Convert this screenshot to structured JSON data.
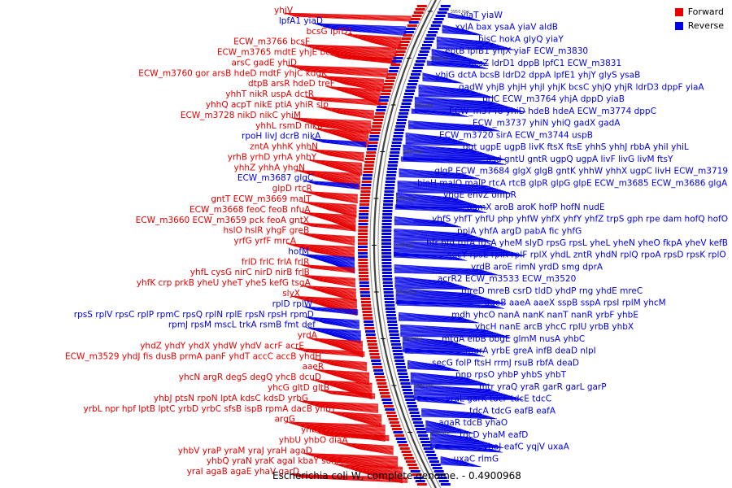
{
  "legend": {
    "forward_label": "Forward",
    "reverse_label": "Reverse",
    "forward_color": "#e60000",
    "reverse_color": "#0000e6"
  },
  "caption": "Escherichia coli W, complete genome. - 0.4900968",
  "scale_ticks": [
    "3950 kbp",
    "3900 kbp",
    "3850 kbp",
    "3800 kbp",
    "3750 kbp",
    "3700 kbp",
    "3650 kbp",
    "3600 kbp",
    "3550 kbp",
    "3500 kbp"
  ],
  "left_labels": [
    {
      "row": "yhjV",
      "color": "red"
    },
    {
      "row": "lpfA1 yiaD",
      "color": "blue"
    },
    {
      "row": "bcsG lpfD1",
      "color": "red"
    },
    {
      "row": "ECW_m3766 bcsF",
      "color": "red"
    },
    {
      "row": "ECW_m3765 mdtE yhjE bcsE",
      "color": "red"
    },
    {
      "row": "arsC gadE yhjD",
      "color": "red"
    },
    {
      "row": "ECW_m3760 gor arsB hdeD mdtF yhjC kdgK",
      "color": "red"
    },
    {
      "row": "dtpB arsR hdeD treF",
      "color": "red"
    },
    {
      "row": "yhhT nikR uspA dctR",
      "color": "red"
    },
    {
      "row": "yhhQ acpT nikE ptiA yhiR slp",
      "color": "red"
    },
    {
      "row": "ECW_m3728 nikD nikC yhiM",
      "color": "red"
    },
    {
      "row": "yhhL rsmD nikB",
      "color": "red"
    },
    {
      "row": "rpoH livJ dcrB nikA",
      "color": "blue"
    },
    {
      "row": "zntA yhhK yhhN",
      "color": "red"
    },
    {
      "row": "yrhB yrhD yrhA yhhY",
      "color": "red"
    },
    {
      "row": "yhhZ yhhA yhgN",
      "color": "red"
    },
    {
      "row": "ECW_m3687 glgC",
      "color": "blue"
    },
    {
      "row": "glpD rtcR",
      "color": "red"
    },
    {
      "row": "gntT ECW_m3669 malT",
      "color": "red"
    },
    {
      "row": "ECW_m3668 feoC feoB nfuA",
      "color": "red"
    },
    {
      "row": "ECW_m3660 ECW_m3659 pck feoA gntX",
      "color": "red"
    },
    {
      "row": "hslO hslR yhgF greB",
      "color": "red"
    },
    {
      "row": "yrfG yrfF mrcA",
      "color": "red"
    },
    {
      "row": "hofM",
      "color": "blue"
    },
    {
      "row": "frlD frlC frlA frlR",
      "color": "red"
    },
    {
      "row": "yhfL cysG nirC nirD nirB frlB",
      "color": "red"
    },
    {
      "row": "yhfK crp prkB yheU yheT yheS kefG tsgA",
      "color": "red"
    },
    {
      "row": "slyX",
      "color": "red"
    },
    {
      "row": "rplD rplW",
      "color": "blue"
    },
    {
      "row": "rpsS rplV rpsC rplP rpmC rpsQ rplN rplE rpsN rpsH rpmD",
      "color": "blue"
    },
    {
      "row": "rpmJ rpsM mscL trkA rsmB fmt def",
      "color": "blue"
    },
    {
      "row": "yrdA",
      "color": "red"
    },
    {
      "row": "yhdZ yhdY yhdX yhdW yhdV acrF acrE",
      "color": "red"
    },
    {
      "row": "ECW_m3529 yhdJ fis dusB prmA panF yhdT accC accB yhdH",
      "color": "red"
    },
    {
      "row": "aaeR",
      "color": "red"
    },
    {
      "row": "yhcN argR degS degQ yhcB dcuD",
      "color": "red"
    },
    {
      "row": "yhcG gltD gltB",
      "color": "red"
    },
    {
      "row": "yhbJ ptsN rpoN lptA kdsC kdsD yrbG",
      "color": "red"
    },
    {
      "row": "yrbL npr hpf lptB lptC yrbD yrbC sfsB ispB rpmA dacB yhbY",
      "color": "red"
    },
    {
      "row": "argG",
      "color": "red"
    },
    {
      "row": "yhbW",
      "color": "red"
    },
    {
      "row": "yhbU yhbO diaA",
      "color": "red"
    },
    {
      "row": "yhbV yraP yraM yraJ yraH agaD",
      "color": "red"
    },
    {
      "row": "yhbQ yraN yraK agaI kbaY sohA",
      "color": "red"
    },
    {
      "row": "yraI agaB agaE yhaV garD",
      "color": "red"
    }
  ],
  "right_labels": [
    {
      "row": "yiaT yiaW"
    },
    {
      "row": "xylA bax ysaA yiaV aldB"
    },
    {
      "row": "bisC hokA glyQ yiaY"
    },
    {
      "row": "eptB lpfB1 yhjX yiaF ECW_m3830"
    },
    {
      "row": "bcsZ ldrD1 dppB lpfC1 ECW_m3831"
    },
    {
      "row": "yhjG dctA bcsB ldrD2 dppA lpfE1 yhjY glyS ysaB"
    },
    {
      "row": "gadW yhjB yhjH yhjI yhjK bcsC yhjQ yhjR ldrD3 dppF yiaA"
    },
    {
      "row": "prlC ECW_m3764 yhjA dppD yiaB"
    },
    {
      "row": "ECW_m3748 yhiD hdeB hdeA ECW_m3774 dppC"
    },
    {
      "row": "ECW_m3737 yhiN yhiQ gadX gadA"
    },
    {
      "row": "ECW_m3720 sirA ECW_m3744 uspB"
    },
    {
      "row": "ggt ugpE ugpB livK ftsX ftsE yhhS yhhJ rbbA yhiI yhiL"
    },
    {
      "row": "asd gntU gntR ugpQ ugpA livF livG livM ftsY"
    },
    {
      "row": "glgP ECW_m3684 glgX glgB gntK yhhW yhhX ugpC livH ECW_m3719"
    },
    {
      "row": "bioH malQ malP rtcA rtcB glpR glpG glpE ECW_m3685 ECW_m3686 glgA"
    },
    {
      "row": "yhgE envZ ompR"
    },
    {
      "row": "damX aroB aroK hofP hofN nudE"
    },
    {
      "row": "yhfS yhfT yhfU php yhfW yhfX yhfY yhfZ trpS gph rpe dam hofQ hofO"
    },
    {
      "row": "ppiA yhfA argD pabA fic yhfG"
    },
    {
      "row": "bfr bfd tufA fusA yheM slyD rpsG rpsL yheL yheN yheO fkpA yheV kefB"
    },
    {
      "row": "secY rpsE rplR rplF rplX yhdL zntR yhdN rplQ rpoA rpsD rpsK rplO"
    },
    {
      "row": "yrdB aroE rimN yrdD smg dprA"
    },
    {
      "row": "acrR2 ECW_m3533 ECW_m3520"
    },
    {
      "row": "mreD mreB csrD tldD yhdP rng yhdE mreC"
    },
    {
      "row": "aaeB aaeA aaeX sspB sspA rpsI rplM yhcM"
    },
    {
      "row": "mdh yhcO nanA nanK nanT nanR yrbF yhbE"
    },
    {
      "row": "yhcH nanE arcB yhcC rplU yrbB yhbX"
    },
    {
      "row": "mtgA elbB obgE glmM nusA yhbC"
    },
    {
      "row": "murA yrbE greA infB deaD nlpI"
    },
    {
      "row": "secG folP ftsH rrmJ rsuB rbfA deaD"
    },
    {
      "row": "pnp rpsO yhbP yhbS yhbT"
    },
    {
      "row": "mtr yraQ yraR garR garL garP"
    },
    {
      "row": "yraL garK tdcF tdcE tdcC"
    },
    {
      "row": "tdcA tdcG eafB eafA"
    },
    {
      "row": "agaR tdcB yhaO"
    },
    {
      "row": "tdcD yhaM eafD"
    },
    {
      "row": "yhaJ eafC yqjV uxaA"
    },
    {
      "row": "uxaC rlmG"
    }
  ]
}
